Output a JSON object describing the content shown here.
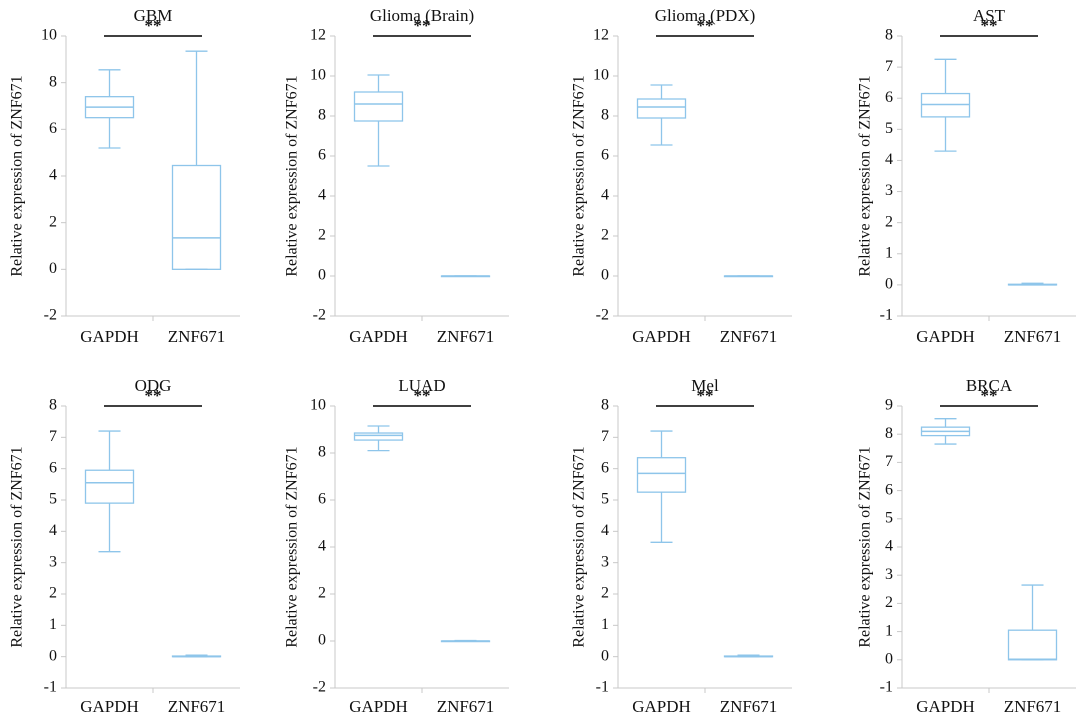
{
  "chart_data": [
    {
      "type": "boxplot",
      "title": "GBM",
      "ylabel": "Relative expression of ZNF671",
      "categories": [
        "GAPDH",
        "ZNF671"
      ],
      "ylim": [
        -2,
        10
      ],
      "yticks": [
        -2,
        0,
        2,
        4,
        6,
        8,
        10
      ],
      "boxes": [
        {
          "min": 5.2,
          "q1": 6.5,
          "median": 6.95,
          "q3": 7.4,
          "max": 8.55
        },
        {
          "min": 0.0,
          "q1": 0.0,
          "median": 1.35,
          "q3": 4.45,
          "max": 9.35
        }
      ],
      "significance": "**"
    },
    {
      "type": "boxplot",
      "title": "Glioma (Brain)",
      "ylabel": "Relative expression of ZNF671",
      "categories": [
        "GAPDH",
        "ZNF671"
      ],
      "ylim": [
        -2,
        12
      ],
      "yticks": [
        -2,
        0,
        2,
        4,
        6,
        8,
        10,
        12
      ],
      "boxes": [
        {
          "min": 5.5,
          "q1": 7.75,
          "median": 8.6,
          "q3": 9.2,
          "max": 10.05
        },
        {
          "min": 0.0,
          "q1": 0.0,
          "median": 0.0,
          "q3": 0.0,
          "max": 0.0
        }
      ],
      "significance": "**"
    },
    {
      "type": "boxplot",
      "title": "Glioma (PDX)",
      "ylabel": "Relative expression of ZNF671",
      "categories": [
        "GAPDH",
        "ZNF671"
      ],
      "ylim": [
        -2,
        12
      ],
      "yticks": [
        -2,
        0,
        2,
        4,
        6,
        8,
        10,
        12
      ],
      "boxes": [
        {
          "min": 6.55,
          "q1": 7.9,
          "median": 8.45,
          "q3": 8.85,
          "max": 9.55
        },
        {
          "min": 0.0,
          "q1": 0.0,
          "median": 0.0,
          "q3": 0.0,
          "max": 0.0
        }
      ],
      "significance": "**"
    },
    {
      "type": "boxplot",
      "title": "AST",
      "ylabel": "Relative expression of ZNF671",
      "categories": [
        "GAPDH",
        "ZNF671"
      ],
      "ylim": [
        -1,
        8
      ],
      "yticks": [
        -1,
        0,
        1,
        2,
        3,
        4,
        5,
        6,
        7,
        8
      ],
      "boxes": [
        {
          "min": 4.3,
          "q1": 5.4,
          "median": 5.8,
          "q3": 6.15,
          "max": 7.25
        },
        {
          "min": 0.0,
          "q1": 0.0,
          "median": 0.0,
          "q3": 0.02,
          "max": 0.05
        }
      ],
      "significance": "**"
    },
    {
      "type": "boxplot",
      "title": "ODG",
      "ylabel": "Relative expression of ZNF671",
      "categories": [
        "GAPDH",
        "ZNF671"
      ],
      "ylim": [
        -1,
        8
      ],
      "yticks": [
        -1,
        0,
        1,
        2,
        3,
        4,
        5,
        6,
        7,
        8
      ],
      "boxes": [
        {
          "min": 3.35,
          "q1": 4.9,
          "median": 5.55,
          "q3": 5.95,
          "max": 7.2
        },
        {
          "min": 0.0,
          "q1": 0.0,
          "median": 0.0,
          "q3": 0.02,
          "max": 0.05
        }
      ],
      "significance": "**"
    },
    {
      "type": "boxplot",
      "title": "LUAD",
      "ylabel": "Relative expression of ZNF671",
      "categories": [
        "GAPDH",
        "ZNF671"
      ],
      "ylim": [
        -2,
        10
      ],
      "yticks": [
        -2,
        0,
        2,
        4,
        6,
        8,
        10
      ],
      "boxes": [
        {
          "min": 8.1,
          "q1": 8.55,
          "median": 8.75,
          "q3": 8.85,
          "max": 9.15
        },
        {
          "min": 0.0,
          "q1": 0.0,
          "median": 0.0,
          "q3": 0.0,
          "max": 0.02
        }
      ],
      "significance": "**"
    },
    {
      "type": "boxplot",
      "title": "Mel",
      "ylabel": "Relative expression of ZNF671",
      "categories": [
        "GAPDH",
        "ZNF671"
      ],
      "ylim": [
        -1,
        8
      ],
      "yticks": [
        -1,
        0,
        1,
        2,
        3,
        4,
        5,
        6,
        7,
        8
      ],
      "boxes": [
        {
          "min": 3.65,
          "q1": 5.25,
          "median": 5.85,
          "q3": 6.35,
          "max": 7.2
        },
        {
          "min": 0.0,
          "q1": 0.0,
          "median": 0.0,
          "q3": 0.02,
          "max": 0.05
        }
      ],
      "significance": "**"
    },
    {
      "type": "boxplot",
      "title": "BRCA",
      "ylabel": "Relative expression of ZNF671",
      "categories": [
        "GAPDH",
        "ZNF671"
      ],
      "ylim": [
        -1,
        9
      ],
      "yticks": [
        -1,
        0,
        1,
        2,
        3,
        4,
        5,
        6,
        7,
        8,
        9
      ],
      "boxes": [
        {
          "min": 7.65,
          "q1": 7.95,
          "median": 8.1,
          "q3": 8.25,
          "max": 8.55
        },
        {
          "min": 0.0,
          "q1": 0.0,
          "median": 0.02,
          "q3": 1.05,
          "max": 2.65
        }
      ],
      "significance": "**"
    }
  ],
  "colors": {
    "box": "#8ec5ea",
    "axis": "#c8c8c8",
    "text": "#111111",
    "sig_line": "#000000"
  }
}
